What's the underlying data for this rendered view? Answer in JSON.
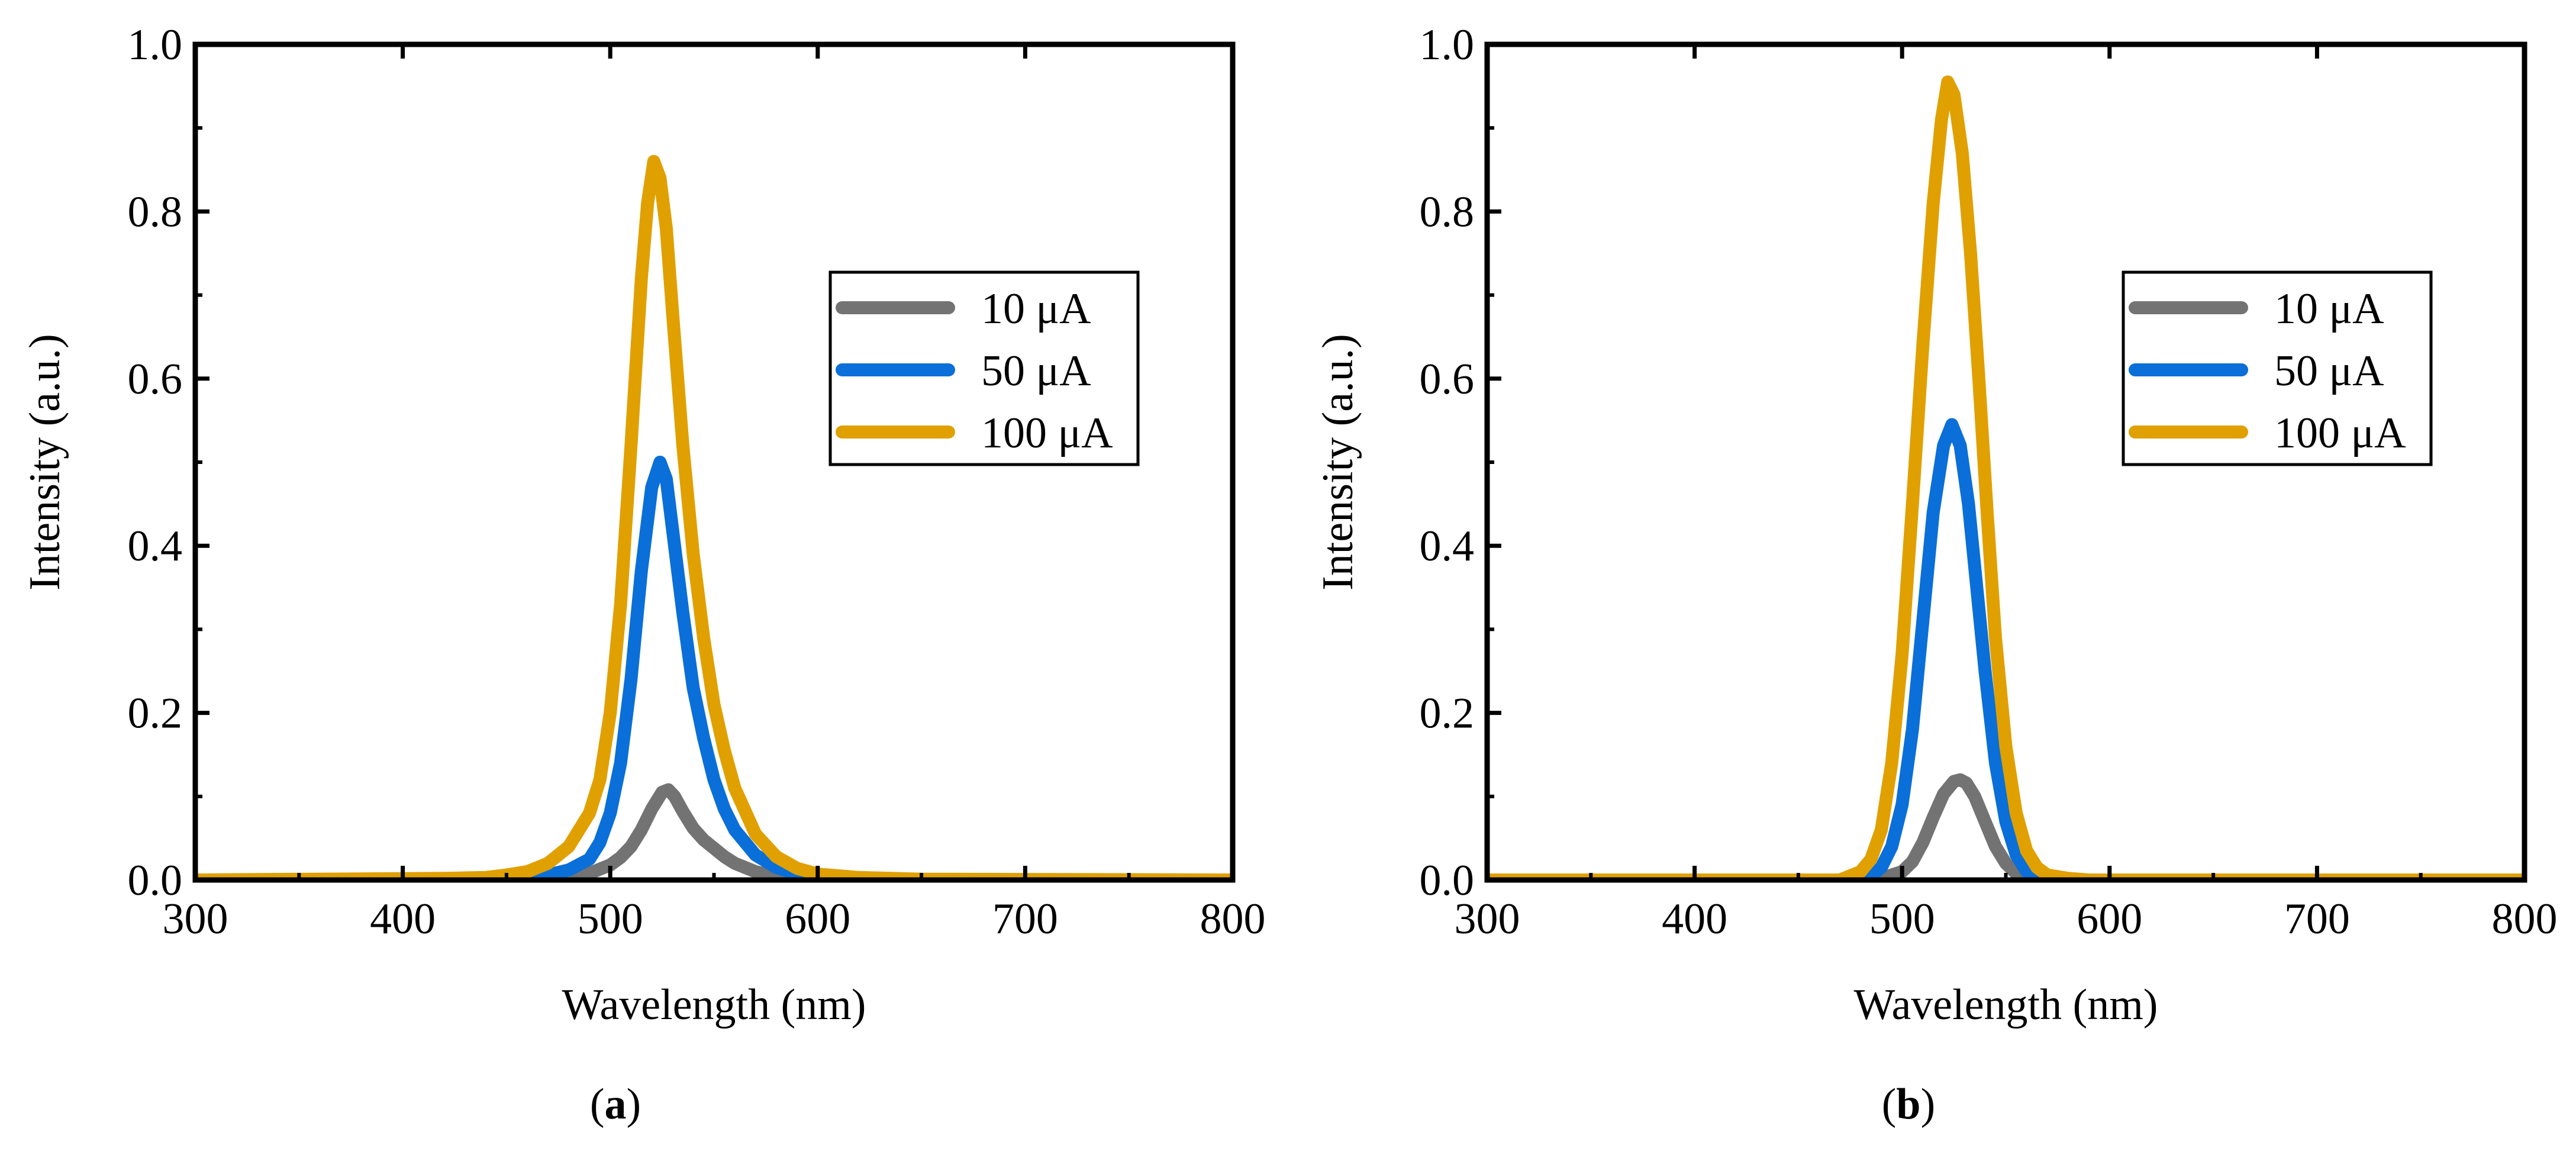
{
  "chart_data": [
    {
      "type": "line",
      "panel_label": "a",
      "caption_open": "(",
      "caption_close": ")",
      "xlabel": "Wavelength (nm)",
      "ylabel": "Intensity (a.u.)",
      "xlim": [
        300,
        800
      ],
      "ylim": [
        0,
        1.0
      ],
      "xticks": [
        "300",
        "400",
        "500",
        "600",
        "700",
        "800"
      ],
      "yticks": [
        "0.0",
        "0.2",
        "0.4",
        "0.6",
        "0.8",
        "1.0"
      ],
      "legend_position": "right",
      "grid": false,
      "series": [
        {
          "name": "10 μA",
          "color": "#737373",
          "points": [
            [
              300,
              0
            ],
            [
              450,
              0
            ],
            [
              470,
              0.002
            ],
            [
              480,
              0.004
            ],
            [
              490,
              0.008
            ],
            [
              500,
              0.018
            ],
            [
              505,
              0.027
            ],
            [
              510,
              0.04
            ],
            [
              515,
              0.06
            ],
            [
              520,
              0.085
            ],
            [
              525,
              0.105
            ],
            [
              528,
              0.108
            ],
            [
              531,
              0.1
            ],
            [
              535,
              0.082
            ],
            [
              540,
              0.062
            ],
            [
              545,
              0.048
            ],
            [
              550,
              0.038
            ],
            [
              555,
              0.028
            ],
            [
              560,
              0.02
            ],
            [
              570,
              0.01
            ],
            [
              580,
              0.004
            ],
            [
              590,
              0.002
            ],
            [
              600,
              0
            ],
            [
              800,
              0
            ]
          ]
        },
        {
          "name": "50 μA",
          "color": "#0a6fd8",
          "points": [
            [
              300,
              0
            ],
            [
              440,
              0
            ],
            [
              460,
              0.002
            ],
            [
              470,
              0.006
            ],
            [
              480,
              0.012
            ],
            [
              490,
              0.025
            ],
            [
              495,
              0.045
            ],
            [
              500,
              0.08
            ],
            [
              505,
              0.14
            ],
            [
              510,
              0.24
            ],
            [
              515,
              0.37
            ],
            [
              520,
              0.47
            ],
            [
              524,
              0.5
            ],
            [
              527,
              0.48
            ],
            [
              530,
              0.42
            ],
            [
              535,
              0.32
            ],
            [
              540,
              0.23
            ],
            [
              545,
              0.17
            ],
            [
              550,
              0.12
            ],
            [
              555,
              0.085
            ],
            [
              560,
              0.06
            ],
            [
              570,
              0.03
            ],
            [
              580,
              0.015
            ],
            [
              590,
              0.007
            ],
            [
              600,
              0.003
            ],
            [
              620,
              0
            ],
            [
              800,
              0
            ]
          ]
        },
        {
          "name": "100 μA",
          "color": "#e0a000",
          "points": [
            [
              300,
              0
            ],
            [
              420,
              0.002
            ],
            [
              440,
              0.003
            ],
            [
              450,
              0.006
            ],
            [
              460,
              0.01
            ],
            [
              470,
              0.02
            ],
            [
              480,
              0.04
            ],
            [
              490,
              0.08
            ],
            [
              495,
              0.12
            ],
            [
              500,
              0.2
            ],
            [
              505,
              0.33
            ],
            [
              510,
              0.52
            ],
            [
              515,
              0.72
            ],
            [
              518,
              0.81
            ],
            [
              521,
              0.86
            ],
            [
              524,
              0.84
            ],
            [
              527,
              0.78
            ],
            [
              530,
              0.68
            ],
            [
              535,
              0.52
            ],
            [
              540,
              0.39
            ],
            [
              545,
              0.29
            ],
            [
              550,
              0.21
            ],
            [
              555,
              0.155
            ],
            [
              560,
              0.11
            ],
            [
              570,
              0.055
            ],
            [
              580,
              0.028
            ],
            [
              590,
              0.014
            ],
            [
              600,
              0.007
            ],
            [
              620,
              0.003
            ],
            [
              650,
              0.001
            ],
            [
              800,
              0
            ]
          ]
        }
      ]
    },
    {
      "type": "line",
      "panel_label": "b",
      "caption_open": "(",
      "caption_close": ")",
      "xlabel": "Wavelength (nm)",
      "ylabel": "Intensity (a.u.)",
      "xlim": [
        300,
        800
      ],
      "ylim": [
        0,
        1.0
      ],
      "xticks": [
        "300",
        "400",
        "500",
        "600",
        "700",
        "800"
      ],
      "yticks": [
        "0.0",
        "0.2",
        "0.4",
        "0.6",
        "0.8",
        "1.0"
      ],
      "legend_position": "right",
      "grid": false,
      "series": [
        {
          "name": "10 μA",
          "color": "#737373",
          "points": [
            [
              300,
              0
            ],
            [
              480,
              0
            ],
            [
              490,
              0.002
            ],
            [
              500,
              0.01
            ],
            [
              505,
              0.022
            ],
            [
              510,
              0.045
            ],
            [
              515,
              0.075
            ],
            [
              520,
              0.103
            ],
            [
              525,
              0.118
            ],
            [
              528,
              0.12
            ],
            [
              531,
              0.116
            ],
            [
              535,
              0.1
            ],
            [
              540,
              0.07
            ],
            [
              545,
              0.04
            ],
            [
              550,
              0.02
            ],
            [
              555,
              0.008
            ],
            [
              560,
              0.003
            ],
            [
              570,
              0
            ],
            [
              800,
              0
            ]
          ]
        },
        {
          "name": "50 μA",
          "color": "#0a6fd8",
          "points": [
            [
              300,
              0
            ],
            [
              475,
              0
            ],
            [
              485,
              0.005
            ],
            [
              490,
              0.015
            ],
            [
              495,
              0.04
            ],
            [
              500,
              0.09
            ],
            [
              505,
              0.18
            ],
            [
              510,
              0.31
            ],
            [
              515,
              0.44
            ],
            [
              520,
              0.52
            ],
            [
              524,
              0.545
            ],
            [
              528,
              0.52
            ],
            [
              532,
              0.45
            ],
            [
              536,
              0.35
            ],
            [
              540,
              0.25
            ],
            [
              545,
              0.14
            ],
            [
              550,
              0.07
            ],
            [
              555,
              0.03
            ],
            [
              560,
              0.01
            ],
            [
              570,
              0.002
            ],
            [
              580,
              0
            ],
            [
              800,
              0
            ]
          ]
        },
        {
          "name": "100 μA",
          "color": "#e0a000",
          "points": [
            [
              300,
              0
            ],
            [
              470,
              0
            ],
            [
              480,
              0.01
            ],
            [
              485,
              0.025
            ],
            [
              490,
              0.06
            ],
            [
              495,
              0.14
            ],
            [
              500,
              0.27
            ],
            [
              505,
              0.45
            ],
            [
              510,
              0.64
            ],
            [
              515,
              0.81
            ],
            [
              519,
              0.91
            ],
            [
              522,
              0.955
            ],
            [
              525,
              0.94
            ],
            [
              529,
              0.87
            ],
            [
              533,
              0.75
            ],
            [
              537,
              0.6
            ],
            [
              541,
              0.44
            ],
            [
              545,
              0.29
            ],
            [
              550,
              0.16
            ],
            [
              555,
              0.08
            ],
            [
              560,
              0.035
            ],
            [
              565,
              0.015
            ],
            [
              570,
              0.006
            ],
            [
              580,
              0.002
            ],
            [
              590,
              0
            ],
            [
              800,
              0
            ]
          ]
        }
      ]
    }
  ]
}
